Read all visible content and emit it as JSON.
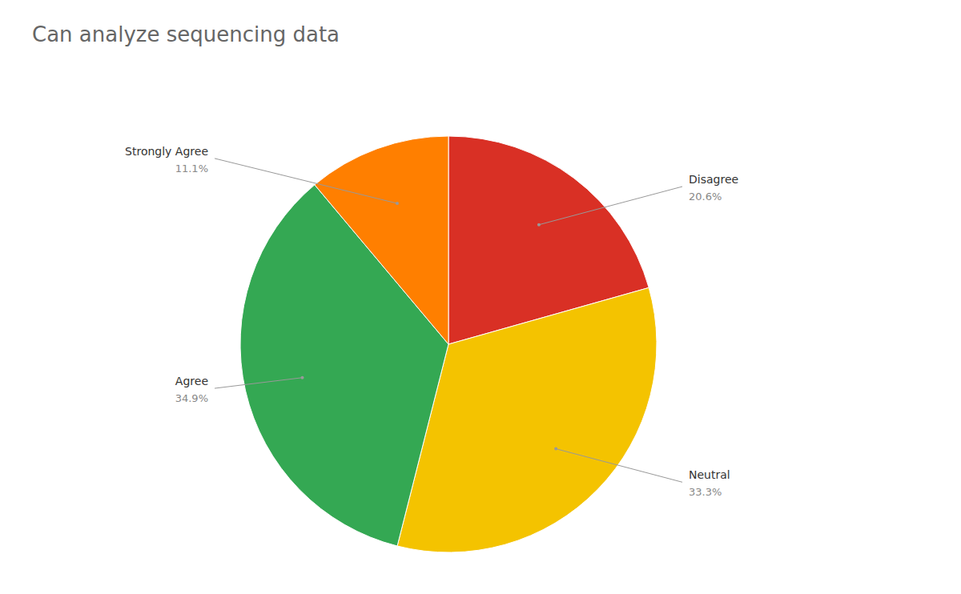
{
  "chart_data": {
    "type": "pie",
    "title": "Can analyze sequencing data",
    "categories": [
      "Disagree",
      "Neutral",
      "Agree",
      "Strongly Agree"
    ],
    "values": [
      20.6,
      33.3,
      34.9,
      11.1
    ],
    "value_labels": [
      "20.6%",
      "33.3%",
      "34.9%",
      "11.1%"
    ],
    "colors": [
      "#D93025",
      "#F4C300",
      "#34A853",
      "#FF7F00"
    ],
    "data_labels": true
  }
}
